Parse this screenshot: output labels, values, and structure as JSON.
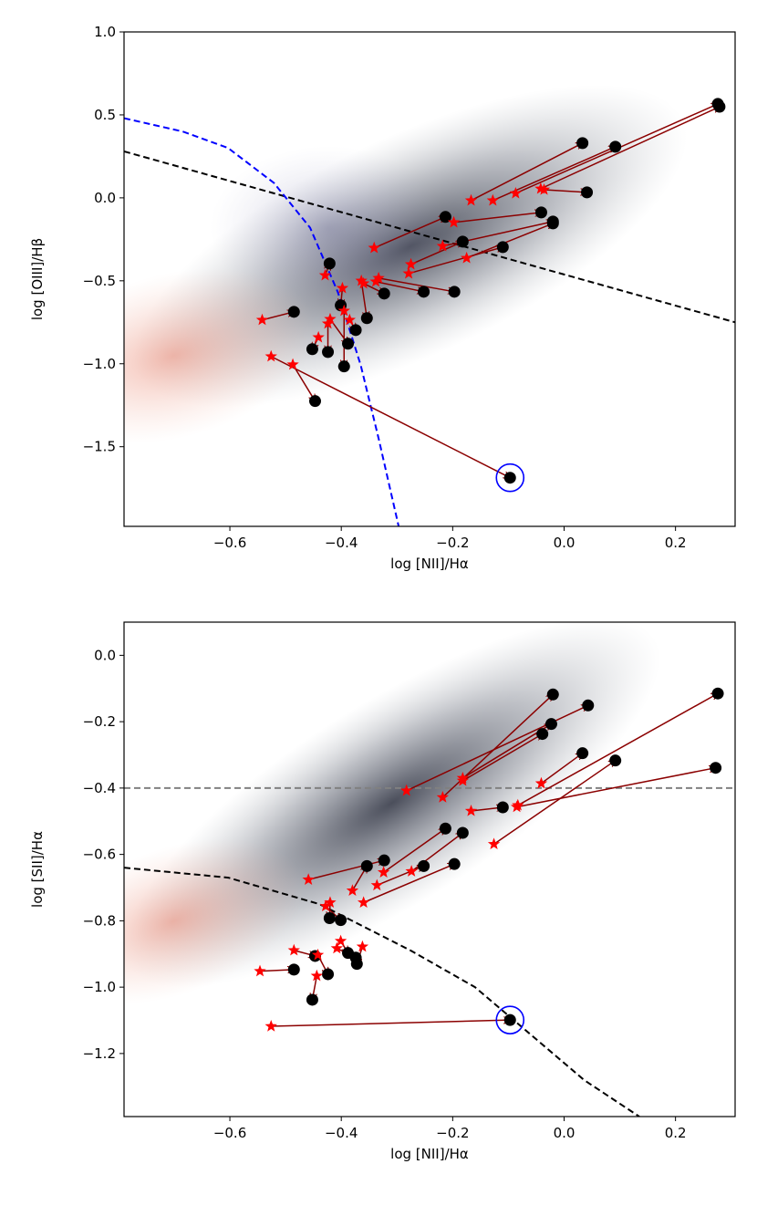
{
  "chart_data": [
    {
      "type": "scatter",
      "xlabel": "log [NII]/Hα",
      "ylabel": "log [OIII]/Hβ",
      "xlim": [
        -0.79,
        0.307
      ],
      "ylim": [
        -1.98,
        1.0
      ],
      "xticks": [
        {
          "value": -0.6,
          "label": "−0.6"
        },
        {
          "value": -0.4,
          "label": "−0.4"
        },
        {
          "value": -0.2,
          "label": "−0.2"
        },
        {
          "value": 0,
          "label": "0.0"
        },
        0.2
      ],
      "yticks": [
        {
          "value": 1,
          "label": "1.0"
        },
        0.5,
        {
          "value": 0,
          "label": "0.0"
        },
        {
          "value": -0.5,
          "label": "−0.5"
        },
        {
          "value": -1,
          "label": "−1.0"
        },
        {
          "value": -1.5,
          "label": "−1.5"
        }
      ],
      "lines": [
        {
          "color": "#000000",
          "x": [
            -0.79,
            0.307
          ],
          "y": [
            0.28,
            -0.75
          ]
        },
        {
          "color": "#0000ff",
          "x": [
            -0.79,
            -0.685,
            -0.603,
            -0.521,
            -0.456,
            -0.406,
            -0.365,
            -0.333,
            -0.297
          ],
          "y": [
            0.48,
            0.4,
            0.3,
            0.09,
            -0.18,
            -0.57,
            -1.01,
            -1.45,
            -1.98
          ]
        }
      ],
      "stars": {
        "color": "#ff0000",
        "x": [
          -0.542,
          -0.526,
          -0.487,
          -0.441,
          -0.424,
          -0.42,
          -0.398,
          -0.395,
          -0.385,
          -0.364,
          -0.429,
          -0.36,
          -0.341,
          -0.338,
          -0.333,
          -0.275,
          -0.279,
          -0.218,
          -0.198,
          -0.175,
          -0.167,
          -0.128,
          -0.087,
          -0.042,
          -0.036
        ],
        "y": [
          -0.736,
          -0.956,
          -1.005,
          -0.841,
          -0.758,
          -0.731,
          -0.544,
          -0.681,
          -0.736,
          -0.5,
          -0.467,
          -0.516,
          -0.302,
          -0.505,
          -0.484,
          -0.401,
          -0.456,
          -0.291,
          -0.148,
          -0.363,
          -0.016,
          -0.016,
          0.027,
          0.055,
          0.049
        ]
      },
      "circles": {
        "color": "#000000",
        "x": [
          -0.485,
          -0.097,
          -0.447,
          -0.452,
          -0.424,
          -0.388,
          -0.401,
          -0.395,
          -0.374,
          -0.354,
          -0.421,
          -0.323,
          -0.213,
          -0.252,
          -0.197,
          -0.182,
          -0.11,
          -0.02,
          -0.041,
          -0.02,
          0.033,
          0.092,
          0.276,
          0.279,
          0.041
        ],
        "y": [
          -0.687,
          -1.687,
          -1.225,
          -0.912,
          -0.929,
          -0.879,
          -0.648,
          -1.016,
          -0.797,
          -0.725,
          -0.396,
          -0.577,
          -0.115,
          -0.566,
          -0.566,
          -0.264,
          -0.297,
          -0.143,
          -0.088,
          -0.154,
          0.33,
          0.308,
          0.566,
          0.549,
          0.033
        ]
      },
      "arrow_color": "#8b0000",
      "highlight_index": 1,
      "highlight_color": "#0000ff"
    },
    {
      "type": "scatter",
      "xlabel": "log [NII]/Hα",
      "ylabel": "log [SII]/Hα",
      "xlim": [
        -0.79,
        0.307
      ],
      "ylim": [
        -1.39,
        0.1
      ],
      "xticks": [
        {
          "value": -0.6,
          "label": "−0.6"
        },
        {
          "value": -0.4,
          "label": "−0.4"
        },
        {
          "value": -0.2,
          "label": "−0.2"
        },
        {
          "value": 0,
          "label": "0.0"
        },
        0.2
      ],
      "yticks": [
        {
          "value": 0,
          "label": "0.0"
        },
        {
          "value": -0.2,
          "label": "−0.2"
        },
        {
          "value": -0.4,
          "label": "−0.4"
        },
        {
          "value": -0.6,
          "label": "−0.6"
        },
        {
          "value": -0.8,
          "label": "−0.8"
        },
        {
          "value": -1,
          "label": "−1.0"
        },
        {
          "value": -1.2,
          "label": "−1.2"
        }
      ],
      "lines": [
        {
          "color": "#808080",
          "x": [
            -0.79,
            0.307
          ],
          "y": [
            -0.4,
            -0.4
          ]
        },
        {
          "color": "#000000",
          "x": [
            -0.79,
            -0.603,
            -0.439,
            -0.275,
            -0.16,
            -0.062,
            0.036,
            0.135
          ],
          "y": [
            -0.64,
            -0.67,
            -0.75,
            -0.89,
            -1.0,
            -1.14,
            -1.28,
            -1.39
          ]
        }
      ],
      "stars": {
        "color": "#ff0000",
        "x": [
          -0.546,
          -0.526,
          -0.485,
          -0.444,
          -0.442,
          -0.401,
          -0.428,
          -0.408,
          -0.362,
          -0.42,
          -0.459,
          -0.38,
          -0.336,
          -0.36,
          -0.324,
          -0.274,
          -0.167,
          -0.218,
          -0.182,
          -0.182,
          -0.283,
          -0.126,
          -0.083,
          -0.085,
          -0.041
        ],
        "y": [
          -0.952,
          -1.118,
          -0.889,
          -0.966,
          -0.903,
          -0.861,
          -0.756,
          -0.883,
          -0.878,
          -0.745,
          -0.676,
          -0.709,
          -0.693,
          -0.745,
          -0.654,
          -0.651,
          -0.469,
          -0.428,
          -0.37,
          -0.378,
          -0.408,
          -0.569,
          -0.452,
          -0.457,
          -0.386
        ]
      },
      "circles": {
        "color": "#000000",
        "x": [
          -0.485,
          -0.097,
          -0.447,
          -0.452,
          -0.424,
          -0.388,
          -0.401,
          -0.374,
          -0.372,
          -0.421,
          -0.323,
          -0.354,
          -0.252,
          -0.197,
          -0.213,
          -0.182,
          -0.11,
          -0.02,
          -0.023,
          -0.039,
          0.043,
          0.092,
          0.276,
          0.272,
          0.033
        ],
        "y": [
          -0.947,
          -1.099,
          -0.906,
          -1.038,
          -0.961,
          -0.897,
          -0.798,
          -0.911,
          -0.93,
          -0.792,
          -0.618,
          -0.635,
          -0.635,
          -0.629,
          -0.522,
          -0.535,
          -0.458,
          -0.118,
          -0.207,
          -0.237,
          -0.151,
          -0.317,
          -0.115,
          -0.339,
          -0.295
        ]
      },
      "arrow_color": "#8b0000",
      "highlight_index": 1,
      "highlight_color": "#0000ff"
    }
  ]
}
